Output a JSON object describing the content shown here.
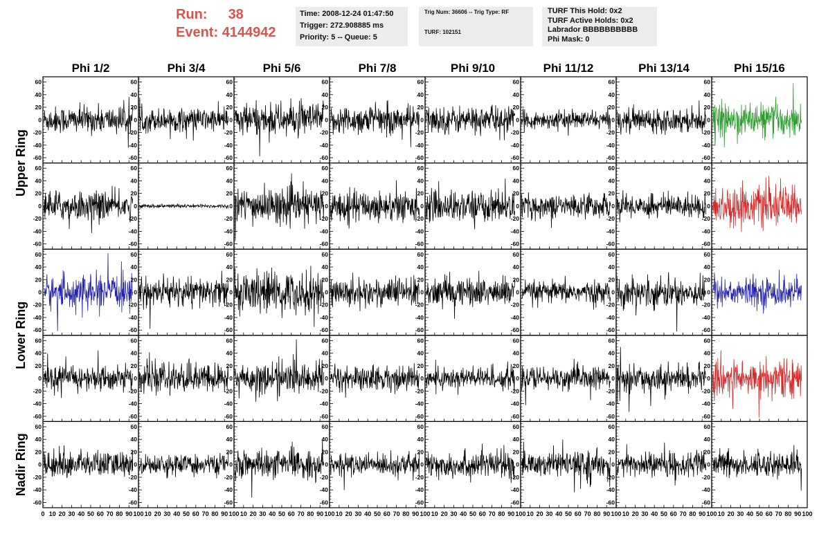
{
  "header": {
    "run_label": "Run:",
    "run_value": "38",
    "event_label": "Event:",
    "event_value": "4144942",
    "time": "Time: 2008-12-24 01:47:50",
    "trigger": "Trigger: 272.908885 ms",
    "priority": "Priority: 5 -- Queue: 5",
    "trig_num": "Trig Num: 36606 -- Trig Type: RF",
    "turf": "TURF: 102151",
    "turf_this_hold": "TURF This Hold: 0x2",
    "turf_active_holds": "TURF Active Holds: 0x2",
    "labrador": "Labrador BBBBBBBBBB",
    "phi_mask": "Phi Mask: 0",
    "colors": {
      "run_text": "#d9534f",
      "info_bg": "#ececec"
    }
  },
  "chart_data": {
    "type": "line",
    "columns": [
      "Phi 1/2",
      "Phi 3/4",
      "Phi 5/6",
      "Phi 7/8",
      "Phi 9/10",
      "Phi 11/12",
      "Phi 13/14",
      "Phi 15/16"
    ],
    "ring_labels": [
      {
        "label": "Upper Ring",
        "rows": [
          0,
          1
        ]
      },
      {
        "label": "Lower Ring",
        "rows": [
          2,
          3
        ]
      },
      {
        "label": "Nadir Ring",
        "rows": [
          4
        ]
      }
    ],
    "xlim": [
      0,
      100
    ],
    "ylim": [
      -65,
      65
    ],
    "y_ticks": [
      -60,
      -40,
      -20,
      0,
      20,
      40,
      60
    ],
    "x_ticks": [
      0,
      10,
      20,
      30,
      40,
      50,
      60,
      70,
      80,
      90,
      100
    ],
    "waveforms": [
      [
        {
          "amp": 14,
          "color": "#000000"
        },
        {
          "amp": 12,
          "color": "#000000"
        },
        {
          "amp": 17,
          "color": "#000000"
        },
        {
          "amp": 15,
          "color": "#000000"
        },
        {
          "amp": 14,
          "color": "#000000"
        },
        {
          "amp": 9,
          "color": "#000000"
        },
        {
          "amp": 12,
          "color": "#000000"
        },
        {
          "amp": 17,
          "color": "#2e9c2e"
        }
      ],
      [
        {
          "amp": 15,
          "color": "#000000"
        },
        {
          "amp": 2,
          "color": "#000000"
        },
        {
          "amp": 18,
          "color": "#000000"
        },
        {
          "amp": 16,
          "color": "#000000"
        },
        {
          "amp": 16,
          "color": "#000000"
        },
        {
          "amp": 12,
          "color": "#000000"
        },
        {
          "amp": 12,
          "color": "#000000"
        },
        {
          "amp": 20,
          "color": "#d42a2a"
        }
      ],
      [
        {
          "amp": 17,
          "color": "#2222aa"
        },
        {
          "amp": 15,
          "color": "#000000"
        },
        {
          "amp": 21,
          "color": "#000000"
        },
        {
          "amp": 15,
          "color": "#000000"
        },
        {
          "amp": 15,
          "color": "#000000"
        },
        {
          "amp": 11,
          "color": "#000000"
        },
        {
          "amp": 15,
          "color": "#000000"
        },
        {
          "amp": 15,
          "color": "#2222aa"
        }
      ],
      [
        {
          "amp": 13,
          "color": "#000000"
        },
        {
          "amp": 15,
          "color": "#000000"
        },
        {
          "amp": 16,
          "color": "#000000"
        },
        {
          "amp": 13,
          "color": "#000000"
        },
        {
          "amp": 12,
          "color": "#000000"
        },
        {
          "amp": 12,
          "color": "#000000"
        },
        {
          "amp": 13,
          "color": "#000000"
        },
        {
          "amp": 19,
          "color": "#d42a2a"
        }
      ],
      [
        {
          "amp": 14,
          "color": "#000000"
        },
        {
          "amp": 10,
          "color": "#000000"
        },
        {
          "amp": 14,
          "color": "#000000"
        },
        {
          "amp": 11,
          "color": "#000000"
        },
        {
          "amp": 14,
          "color": "#000000"
        },
        {
          "amp": 13,
          "color": "#000000"
        },
        {
          "amp": 13,
          "color": "#000000"
        },
        {
          "amp": 13,
          "color": "#000000"
        }
      ]
    ],
    "grid": false,
    "legend": "none"
  }
}
